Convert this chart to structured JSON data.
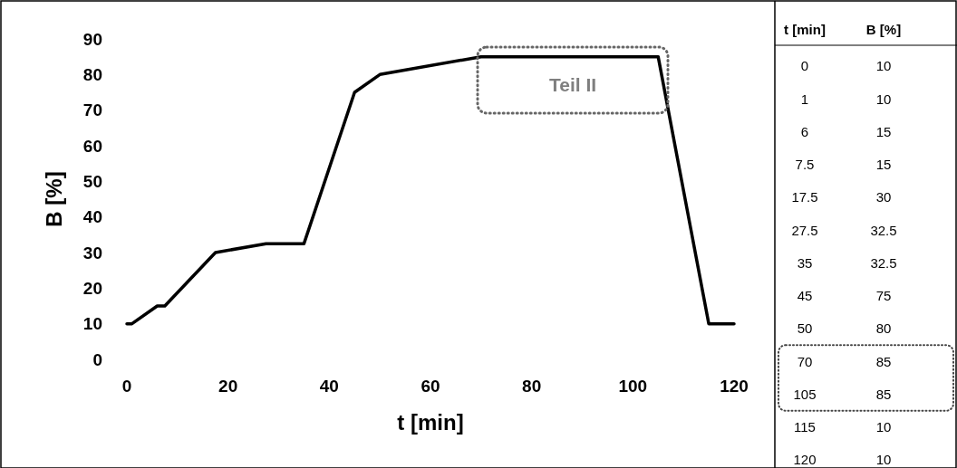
{
  "chart_data": [
    {
      "type": "line",
      "xlabel": "t [min]",
      "ylabel": "B [%]",
      "x": [
        0,
        1,
        6,
        7.5,
        17.5,
        27.5,
        35,
        45,
        50,
        70,
        105,
        115,
        120
      ],
      "series": [
        {
          "color": "#000000",
          "values": [
            10,
            10,
            15,
            15,
            30,
            32.5,
            32.5,
            75,
            80,
            85,
            85,
            10,
            10
          ]
        }
      ],
      "xlim": [
        0,
        120
      ],
      "xticks": [
        0,
        20,
        40,
        60,
        80,
        100,
        120
      ],
      "ylim": [
        0,
        90
      ],
      "yticks": [
        0,
        10,
        20,
        30,
        40,
        50,
        60,
        70,
        80,
        90
      ],
      "grid": false,
      "marker": "none",
      "line_style": "solid",
      "annotations": [
        "Teil II"
      ]
    },
    {
      "type": "other",
      "annotations": [
        "t [min]",
        "B [%]",
        "0",
        "10",
        "1",
        "10",
        "6",
        "15",
        "7.5",
        "15",
        "17.5",
        "30",
        "27.5",
        "32.5",
        "35",
        "32.5",
        "45",
        "75",
        "50",
        "80",
        "70",
        "85",
        "105",
        "85",
        "115",
        "10",
        "120",
        "10"
      ]
    }
  ]
}
